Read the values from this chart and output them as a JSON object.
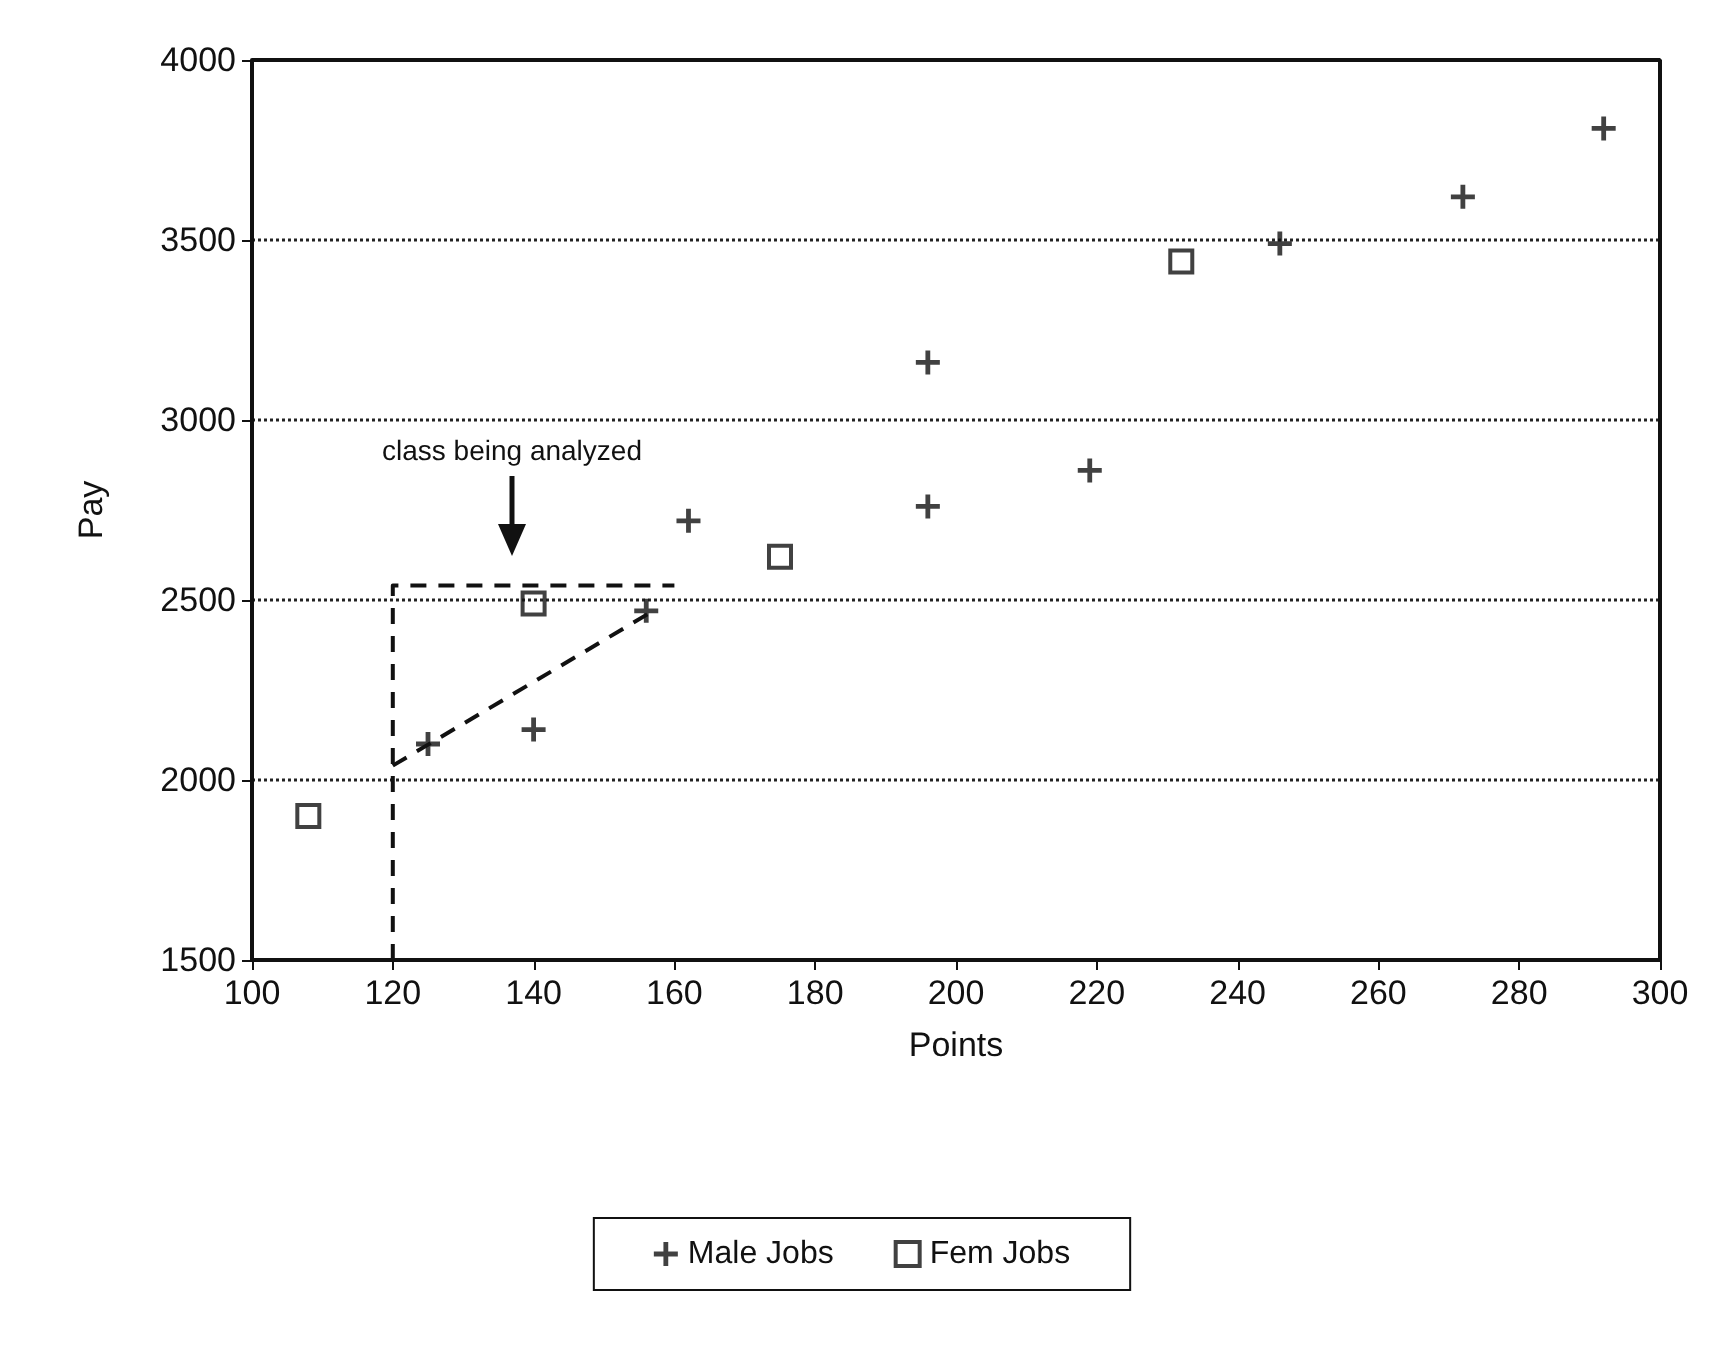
{
  "chart_data": {
    "type": "scatter",
    "xlabel": "Points",
    "ylabel": "Pay",
    "xlim": [
      100,
      300
    ],
    "xticks": [
      100,
      120,
      140,
      160,
      180,
      200,
      220,
      240,
      260,
      280,
      300
    ],
    "ylim": [
      1500,
      4000
    ],
    "yticks": [
      1500,
      2000,
      2500,
      3000,
      3500,
      4000
    ],
    "grid": "y",
    "legend": "bottom",
    "series": [
      {
        "name": "Male Jobs",
        "color": "#111111",
        "marker": "cross",
        "x": [
          125,
          140,
          156,
          162,
          196,
          196,
          219,
          246,
          272,
          292
        ],
        "values": [
          2100,
          2140,
          2470,
          2720,
          2760,
          3160,
          2860,
          3490,
          3620,
          3810
        ]
      },
      {
        "name": "Fem Jobs",
        "color": "#111111",
        "marker": "square",
        "x": [
          108,
          140,
          175,
          232
        ],
        "values": [
          1900,
          2490,
          2620,
          3440
        ]
      },
      {
        "type": "line",
        "color": "#111111",
        "line_style": "dashed",
        "marker": "none",
        "x": [
          120,
          157
        ],
        "values": [
          2040,
          2470
        ]
      },
      {
        "type": "line",
        "color": "#111111",
        "line_style": "dashed",
        "marker": "none",
        "x": [
          120,
          120,
          160
        ],
        "values": [
          1500,
          2540,
          2540
        ]
      }
    ],
    "annotations": [
      "class being analyzed"
    ]
  }
}
